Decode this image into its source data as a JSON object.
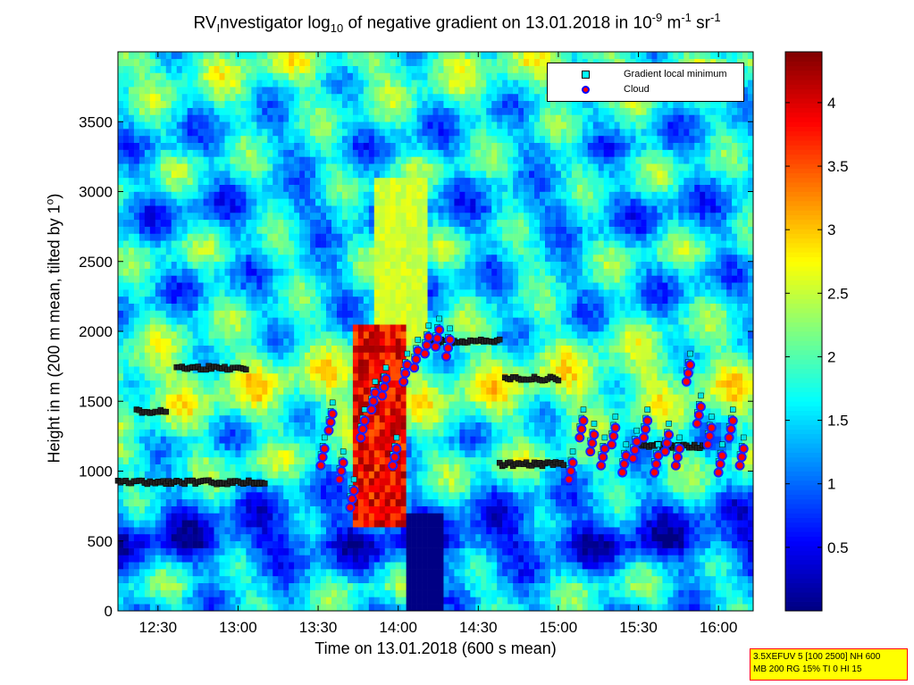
{
  "title": {
    "part1": "RV",
    "part2": "nvestigator log",
    "sub": "10",
    "part3": " of negative gradient on 13.01.2018 in 10",
    "sup1": "-9",
    "part4": " m",
    "sup2": "-1",
    "part5": " sr",
    "sup3": "-1"
  },
  "xlabel": "Time on 13.01.2018 (600 s mean)",
  "ylabel": {
    "text": "Height in m (200 m mean, tilted by 1",
    "sup": "o",
    "close": ")"
  },
  "legend": {
    "items": [
      {
        "label": "Gradient local minimum",
        "marker": "square",
        "color": "#00ffff"
      },
      {
        "label": "Cloud",
        "marker": "circle",
        "color": "#ff0000",
        "edge": "#0000ff"
      }
    ]
  },
  "settings_box": {
    "line1": "3.5XEFUV 5 [100 2500] NH 600",
    "line2": "MB 200 RG 15% TI 0 HI 15"
  },
  "chart_data": {
    "type": "heatmap",
    "colormap": "jet",
    "x_ticks": [
      "12:30",
      "13:00",
      "13:30",
      "14:00",
      "14:30",
      "15:00",
      "15:30",
      "16:00"
    ],
    "x_tick_minutes": [
      750,
      780,
      810,
      840,
      870,
      900,
      930,
      960
    ],
    "xlim_minutes": [
      735,
      973
    ],
    "y_ticks": [
      0,
      500,
      1000,
      1500,
      2000,
      2500,
      3000,
      3500
    ],
    "ylim": [
      0,
      4000
    ],
    "colorbar": {
      "ticks": [
        0.5,
        1,
        1.5,
        2,
        2.5,
        3,
        3.5,
        4
      ],
      "labels": [
        "0.5",
        "1",
        "1.5",
        "2",
        "2.5",
        "3",
        "3.5",
        "4"
      ],
      "range": [
        0,
        4.4
      ]
    },
    "background_value_profile": {
      "heights": [
        0,
        150,
        300,
        450,
        600,
        750,
        900,
        1050,
        1200,
        1350,
        1500,
        1650,
        1800,
        1950,
        2100,
        2250,
        2400,
        2550,
        2700,
        2850,
        3000,
        3150,
        3300,
        3450,
        3600,
        3750,
        3900,
        4000
      ],
      "values": [
        1.5,
        1.7,
        1.2,
        0.6,
        0.9,
        1.2,
        1.6,
        1.9,
        1.6,
        1.9,
        2.2,
        2.3,
        2.0,
        1.8,
        1.6,
        1.4,
        1.5,
        1.8,
        1.4,
        1.2,
        1.5,
        1.7,
        1.4,
        1.5,
        1.7,
        1.9,
        2.1,
        1.8
      ]
    },
    "cloud_core": {
      "time_range_minutes": [
        822,
        842
      ],
      "height_range": [
        600,
        2000
      ],
      "value_max": 4.3
    },
    "gradient_local_minimum": {
      "layers": [
        {
          "t_start": 735,
          "t_end": 790,
          "height": 920
        },
        {
          "t_start": 757,
          "t_end": 783,
          "height": 1740
        },
        {
          "t_start": 742,
          "t_end": 753,
          "height": 1430
        },
        {
          "t_start": 852,
          "t_end": 878,
          "height": 1930
        },
        {
          "t_start": 878,
          "t_end": 902,
          "height": 1050
        },
        {
          "t_start": 880,
          "t_end": 900,
          "height": 1660
        },
        {
          "t_start": 930,
          "t_end": 955,
          "height": 1180
        }
      ]
    },
    "cloud": {
      "times_minutes": [
        811,
        814,
        818,
        822,
        826,
        830,
        834,
        838,
        842,
        846,
        850,
        854,
        858,
        904,
        908,
        912,
        916,
        920,
        924,
        928,
        932,
        936,
        940,
        944,
        948,
        952,
        956,
        960,
        964,
        968
      ],
      "heights": [
        1100,
        1350,
        1000,
        800,
        1300,
        1500,
        1600,
        1100,
        1700,
        1800,
        1900,
        1950,
        1880,
        1000,
        1300,
        1200,
        1100,
        1250,
        1050,
        1150,
        1300,
        1050,
        1200,
        1100,
        1700,
        1400,
        1250,
        1050,
        1300,
        1100
      ]
    }
  }
}
